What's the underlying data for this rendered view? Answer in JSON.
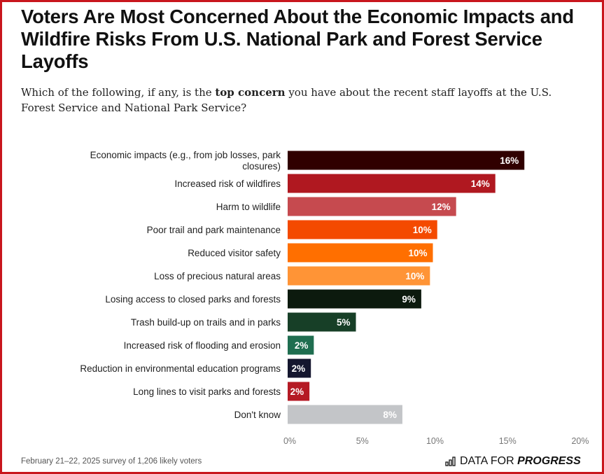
{
  "title": "Voters Are Most Concerned About the Economic Impacts and Wildfire Risks From U.S. National Park and Forest Service Layoffs",
  "subtitle": {
    "before": "Which of the following, if any, is the ",
    "bold": "top concern",
    "after": " you have about the recent staff layoffs at the U.S. Forest Service and National Park Service?"
  },
  "footer": "February 21–22, 2025 survey of 1,206 likely voters",
  "logo": {
    "plain": "DATA FOR ",
    "bold": "PROGRESS",
    "icon": "bar-chart-icon"
  },
  "chart_data": {
    "type": "bar",
    "orientation": "horizontal",
    "categories": [
      [
        "Economic impacts (e.g., from job losses, park",
        "closures)"
      ],
      [
        "Increased risk of wildfires"
      ],
      [
        "Harm to wildlife"
      ],
      [
        "Poor trail and park maintenance"
      ],
      [
        "Reduced visitor safety"
      ],
      [
        "Loss of precious natural areas"
      ],
      [
        "Losing access to closed parks and forests"
      ],
      [
        "Trash build-up on trails and in parks"
      ],
      [
        "Increased risk of flooding and erosion"
      ],
      [
        "Reduction in environmental education programs"
      ],
      [
        "Long lines to visit parks and forests"
      ],
      [
        "Don't know"
      ]
    ],
    "values": [
      16.3,
      14.3,
      11.6,
      10.3,
      10.0,
      9.8,
      9.2,
      4.7,
      1.8,
      1.6,
      1.5,
      7.9
    ],
    "data_labels": [
      "16%",
      "14%",
      "12%",
      "10%",
      "10%",
      "10%",
      "9%",
      "5%",
      "2%",
      "2%",
      "2%",
      "8%"
    ],
    "colors": [
      "#300000",
      "#b01820",
      "#c64a4f",
      "#f44a00",
      "#ff6f00",
      "#ff9436",
      "#0c1a0e",
      "#173f27",
      "#1f6e50",
      "#14162e",
      "#b51a24",
      "#c3c5c8"
    ],
    "xlim": [
      0,
      20
    ],
    "xticks": [
      "0%",
      "5%",
      "10%",
      "15%",
      "20%"
    ],
    "grid": false,
    "legend": "none"
  }
}
